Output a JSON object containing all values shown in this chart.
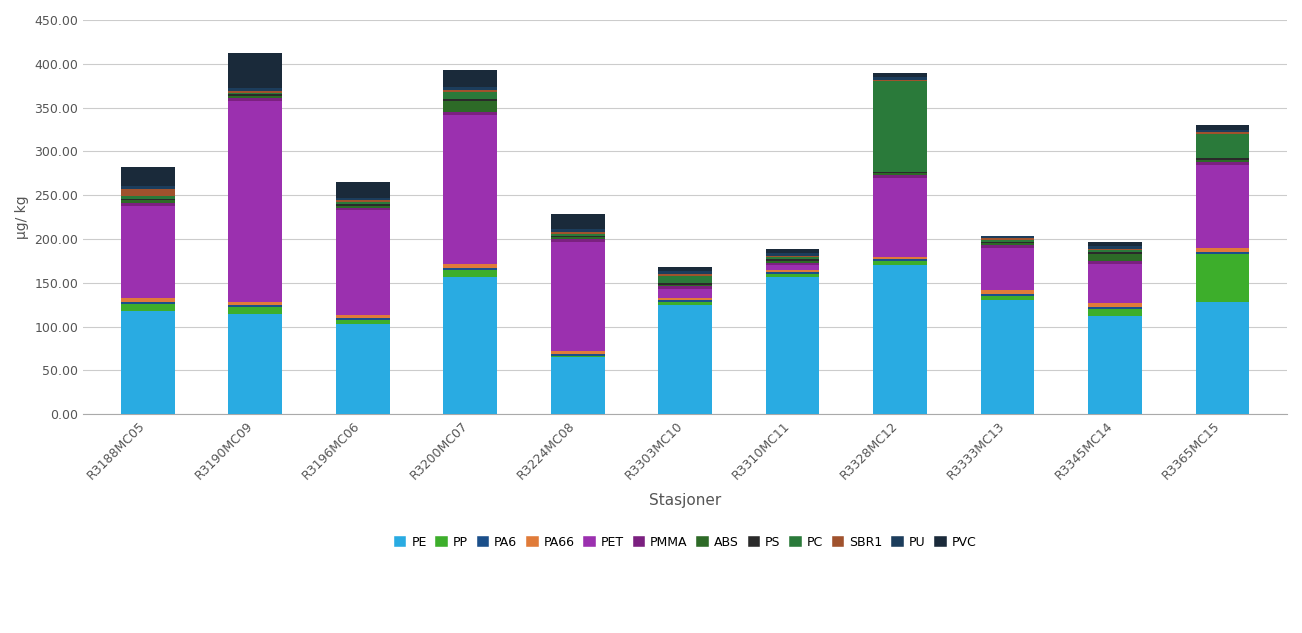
{
  "stations": [
    "R3188MC05",
    "R3190MC09",
    "R3196MC06",
    "R3200MC07",
    "R3224MC08",
    "R3303MC10",
    "R3310MC11",
    "R3328MC12",
    "R3333MC13",
    "R3345MC14",
    "R3365MC15"
  ],
  "plastic_types": [
    "PE",
    "PP",
    "PA6",
    "PA66",
    "PET",
    "PMMA",
    "ABS",
    "PS",
    "PC",
    "SBR1",
    "PU",
    "PVC"
  ],
  "colors": {
    "PE": "#29ABE2",
    "PP": "#3DAE2B",
    "PA6": "#1B4F8A",
    "PA66": "#E07B39",
    "PET": "#9B30AF",
    "PMMA": "#7B2080",
    "ABS": "#2D6A27",
    "PS": "#2A2A2A",
    "PC": "#2A7A3A",
    "SBR1": "#A0522D",
    "PU": "#1C3D5C",
    "PVC": "#1A2A3A"
  },
  "values": {
    "PE": [
      118,
      115,
      103,
      157,
      65,
      125,
      157,
      170,
      130,
      112,
      128
    ],
    "PP": [
      8,
      8,
      5,
      8,
      2,
      3,
      3,
      5,
      5,
      8,
      55
    ],
    "PA6": [
      2,
      2,
      2,
      2,
      2,
      2,
      2,
      2,
      2,
      2,
      2
    ],
    "PA66": [
      5,
      3,
      3,
      5,
      3,
      3,
      3,
      3,
      5,
      5,
      5
    ],
    "PET": [
      105,
      230,
      120,
      170,
      125,
      10,
      5,
      90,
      48,
      45,
      95
    ],
    "PMMA": [
      3,
      3,
      3,
      3,
      3,
      3,
      3,
      3,
      3,
      3,
      3
    ],
    "ABS": [
      3,
      2,
      2,
      13,
      2,
      2,
      2,
      2,
      2,
      8,
      2
    ],
    "PS": [
      2,
      2,
      2,
      2,
      2,
      2,
      2,
      2,
      2,
      2,
      2
    ],
    "PC": [
      3,
      2,
      2,
      8,
      2,
      8,
      2,
      103,
      2,
      2,
      28
    ],
    "SBR1": [
      8,
      2,
      2,
      2,
      2,
      2,
      2,
      2,
      2,
      2,
      2
    ],
    "PU": [
      3,
      3,
      3,
      3,
      3,
      3,
      3,
      3,
      3,
      3,
      3
    ],
    "PVC": [
      22,
      40,
      18,
      20,
      18,
      5,
      5,
      5,
      0,
      5,
      5
    ]
  },
  "ylabel": "μg/ kg",
  "xlabel": "Stasjoner",
  "ylim": [
    0,
    450
  ],
  "yticks": [
    0,
    50,
    100,
    150,
    200,
    250,
    300,
    350,
    400,
    450
  ],
  "background_color": "#ffffff",
  "grid_color": "#cccccc"
}
